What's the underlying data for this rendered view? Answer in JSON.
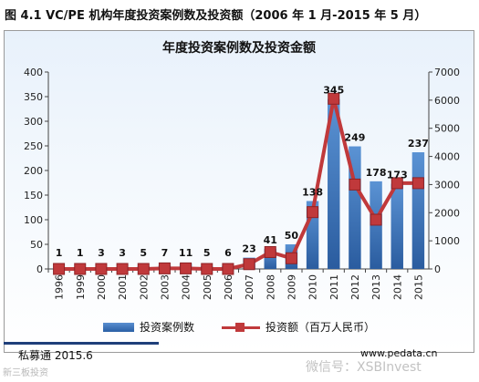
{
  "caption": "图 4.1 VC/PE 机构年度投资案例数及投资额（2006 年 1 月-2015 年 5 月）",
  "footer": {
    "source": "私募通 2015.6",
    "site": "www.pedata.cn",
    "watermark_right": "微信号：XSBInvest",
    "watermark_left": "新三板投资"
  },
  "colors": {
    "bars": "#2f6bb3",
    "line": "#c0393b"
  },
  "chart_data": {
    "type": "bar+line",
    "title": "年度投资案例数及投资金额",
    "categories": [
      "1996",
      "1999",
      "2000",
      "2001",
      "2002",
      "2003",
      "2004",
      "2005",
      "2006",
      "2007",
      "2008",
      "2009",
      "2010",
      "2011",
      "2012",
      "2013",
      "2014",
      "2015"
    ],
    "series": [
      {
        "name": "投资案例数",
        "type": "bar",
        "axis": "left",
        "values": [
          1,
          1,
          3,
          3,
          5,
          7,
          11,
          5,
          6,
          23,
          41,
          50,
          138,
          345,
          249,
          178,
          173,
          237
        ]
      },
      {
        "name": "投资额（百万人民币）",
        "type": "line",
        "axis": "right",
        "values": [
          0,
          0,
          0,
          0,
          0,
          20,
          20,
          0,
          0,
          170,
          600,
          380,
          2020,
          6050,
          3000,
          1750,
          3050,
          3050
        ]
      }
    ],
    "y_left": {
      "min": 0,
      "max": 400,
      "ticks": [
        0,
        50,
        100,
        150,
        200,
        250,
        300,
        350,
        400
      ]
    },
    "y_right": {
      "min": 0,
      "max": 7000,
      "ticks": [
        0,
        1000,
        2000,
        3000,
        4000,
        5000,
        6000,
        7000
      ]
    },
    "legend": "bottom",
    "grid": false
  }
}
